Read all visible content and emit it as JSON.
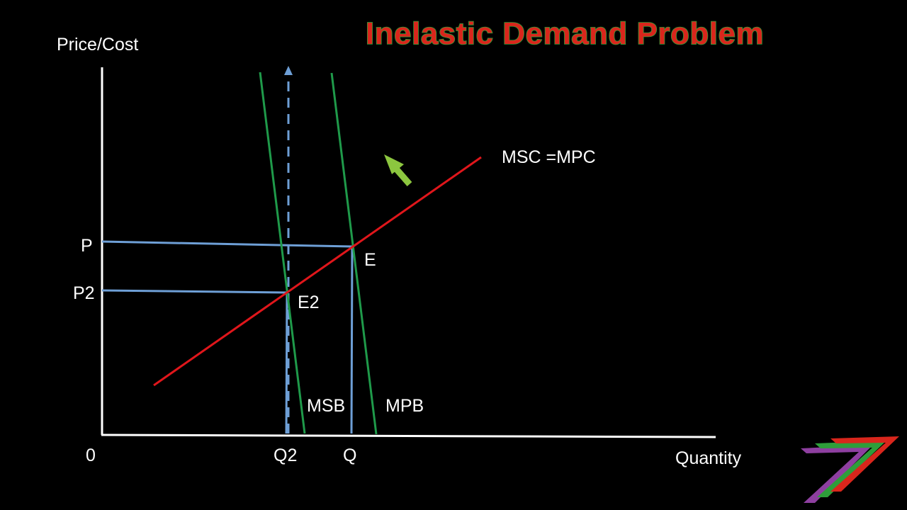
{
  "title": "Inelastic Demand Problem",
  "axes": {
    "y_label": "Price/Cost",
    "x_label": "Quantity",
    "origin_label": "0"
  },
  "price_labels": {
    "p": "P",
    "p2": "P2"
  },
  "quantity_labels": {
    "q2": "Q2",
    "q": "Q"
  },
  "point_labels": {
    "e": "E",
    "e2": "E2"
  },
  "curve_labels": {
    "supply": "MSC =MPC",
    "msb": "MSB",
    "mpb": "MPB"
  },
  "colors": {
    "background": "#000000",
    "axis": "#ffffff",
    "supply_curve": "#e0161b",
    "demand_curves": "#1f9a4a",
    "guide_lines": "#6e9fd6",
    "arrow_up_left": "#8cc63f",
    "title_fill": "#d9261c",
    "title_outline": "#2e9e3a",
    "logo": [
      "#8e3fa0",
      "#2e9e3a",
      "#d9261c"
    ]
  },
  "icons": {
    "shift_arrow": "arrow-up-left-icon",
    "logo": "seven-stripes-logo-icon"
  }
}
